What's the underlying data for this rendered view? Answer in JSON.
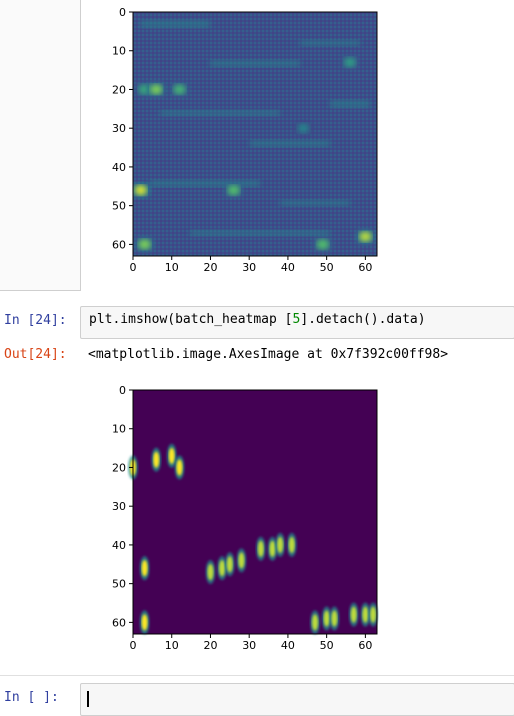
{
  "cells": {
    "cell24": {
      "in_prompt": "In  [24]:",
      "code_prefix": "plt.imshow(batch_heatmap [",
      "code_index": "5",
      "code_suffix": "].detach().data)",
      "out_prompt": "Out[24]:",
      "out_text": "<matplotlib.image.AxesImage at 0x7f392c00ff98>"
    },
    "empty_cell": {
      "in_prompt": "In  [ ]:"
    }
  },
  "chart_data": [
    {
      "type": "heatmap",
      "description_key": "previous-output-heatmap",
      "x_ticks": [
        "0",
        "10",
        "20",
        "30",
        "40",
        "50",
        "60"
      ],
      "y_ticks": [
        "0",
        "10",
        "20",
        "30",
        "40",
        "50",
        "60"
      ],
      "xlim": [
        0,
        63
      ],
      "ylim": [
        0,
        63
      ],
      "colormap": "viridis",
      "hotspots": [
        {
          "x": 3,
          "y": 20,
          "v": 0.6
        },
        {
          "x": 6,
          "y": 20,
          "v": 0.8
        },
        {
          "x": 12,
          "y": 20,
          "v": 0.65
        },
        {
          "x": 2,
          "y": 46,
          "v": 0.95
        },
        {
          "x": 26,
          "y": 46,
          "v": 0.7
        },
        {
          "x": 3,
          "y": 60,
          "v": 0.8
        },
        {
          "x": 49,
          "y": 60,
          "v": 0.7
        },
        {
          "x": 60,
          "y": 58,
          "v": 0.9
        },
        {
          "x": 56,
          "y": 13,
          "v": 0.55
        },
        {
          "x": 44,
          "y": 30,
          "v": 0.45
        }
      ]
    },
    {
      "type": "heatmap",
      "description_key": "batch-heatmap-5",
      "x_ticks": [
        "0",
        "10",
        "20",
        "30",
        "40",
        "50",
        "60"
      ],
      "y_ticks": [
        "0",
        "10",
        "20",
        "30",
        "40",
        "50",
        "60"
      ],
      "xlim": [
        0,
        63
      ],
      "ylim": [
        0,
        63
      ],
      "colormap": "viridis",
      "hotspots": [
        {
          "x": 0,
          "y": 20,
          "v": 1.0
        },
        {
          "x": 6,
          "y": 18,
          "v": 1.0
        },
        {
          "x": 10,
          "y": 17,
          "v": 1.0
        },
        {
          "x": 12,
          "y": 20,
          "v": 1.0
        },
        {
          "x": 3,
          "y": 46,
          "v": 1.0
        },
        {
          "x": 20,
          "y": 47,
          "v": 0.9
        },
        {
          "x": 23,
          "y": 46,
          "v": 0.9
        },
        {
          "x": 25,
          "y": 45,
          "v": 0.9
        },
        {
          "x": 28,
          "y": 44,
          "v": 0.9
        },
        {
          "x": 33,
          "y": 41,
          "v": 0.9
        },
        {
          "x": 36,
          "y": 41,
          "v": 0.9
        },
        {
          "x": 38,
          "y": 40,
          "v": 0.9
        },
        {
          "x": 41,
          "y": 40,
          "v": 0.9
        },
        {
          "x": 3,
          "y": 60,
          "v": 1.0
        },
        {
          "x": 47,
          "y": 60,
          "v": 0.9
        },
        {
          "x": 50,
          "y": 59,
          "v": 0.9
        },
        {
          "x": 52,
          "y": 59,
          "v": 0.9
        },
        {
          "x": 57,
          "y": 58,
          "v": 0.9
        },
        {
          "x": 60,
          "y": 58,
          "v": 0.9
        },
        {
          "x": 62,
          "y": 58,
          "v": 0.9
        }
      ]
    }
  ]
}
